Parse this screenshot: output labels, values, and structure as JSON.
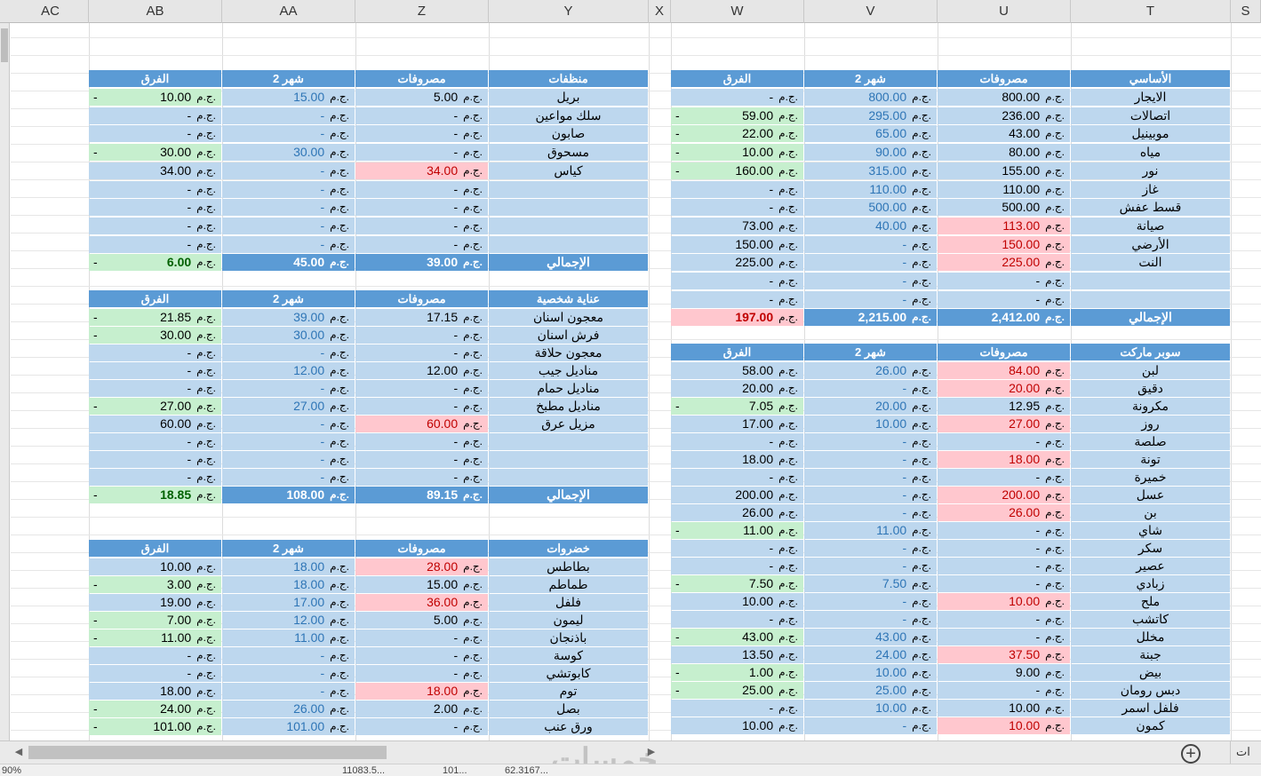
{
  "columns": [
    {
      "label": "AC",
      "x": 14,
      "w": 86
    },
    {
      "label": "AB",
      "x": 100,
      "w": 150
    },
    {
      "label": "AA",
      "x": 250,
      "w": 150
    },
    {
      "label": "Z",
      "x": 400,
      "w": 150
    },
    {
      "label": "Y",
      "x": 550,
      "w": 180
    },
    {
      "label": "X",
      "x": 730,
      "w": 25
    },
    {
      "label": "W",
      "x": 755,
      "w": 150
    },
    {
      "label": "V",
      "x": 905,
      "w": 150
    },
    {
      "label": "U",
      "x": 1055,
      "w": 150
    },
    {
      "label": "T",
      "x": 1205,
      "w": 180
    },
    {
      "label": "S",
      "x": 1385,
      "w": 34
    }
  ],
  "currency": "ج.م.",
  "dash": "-",
  "headers": {
    "diff": "الفرق",
    "month2": "شهر 2",
    "expenses": "مصروفات"
  },
  "total_label": "الإجمالي",
  "tables": {
    "basic": {
      "title": "الأساسي",
      "rows": [
        {
          "name": "الايجار",
          "exp": "800.00",
          "m2": "800.00",
          "diff": "-"
        },
        {
          "name": "اتصالات",
          "exp": "236.00",
          "m2": "295.00",
          "diff": "59.00",
          "flag": "-"
        },
        {
          "name": "موبينيل",
          "exp": "43.00",
          "m2": "65.00",
          "diff": "22.00",
          "flag": "-"
        },
        {
          "name": "مياه",
          "exp": "80.00",
          "m2": "90.00",
          "diff": "10.00",
          "flag": "-"
        },
        {
          "name": "نور",
          "exp": "155.00",
          "m2": "315.00",
          "diff": "160.00",
          "flag": "-"
        },
        {
          "name": "غاز",
          "exp": "110.00",
          "m2": "110.00",
          "diff": "-"
        },
        {
          "name": "قسط عفش",
          "exp": "500.00",
          "m2": "500.00",
          "diff": "-"
        },
        {
          "name": "صيانة",
          "exp": "113.00",
          "m2": "40.00",
          "diff": "73.00"
        },
        {
          "name": "الأرضي",
          "exp": "150.00",
          "m2": "-",
          "diff": "150.00"
        },
        {
          "name": "النت",
          "exp": "225.00",
          "m2": "-",
          "diff": "225.00"
        },
        {
          "name": "",
          "exp": "-",
          "m2": "-",
          "diff": "-"
        },
        {
          "name": "",
          "exp": "-",
          "m2": "-",
          "diff": "-"
        }
      ],
      "total": {
        "exp": "2,412.00",
        "m2": "2,215.00",
        "diff": "197.00"
      }
    },
    "supermarket": {
      "title": "سوبر ماركت",
      "rows": [
        {
          "name": "لبن",
          "exp": "84.00",
          "m2": "26.00",
          "diff": "58.00"
        },
        {
          "name": "دقيق",
          "exp": "20.00",
          "m2": "-",
          "diff": "20.00"
        },
        {
          "name": "مكرونة",
          "exp": "12.95",
          "m2": "20.00",
          "diff": "7.05",
          "flag": "-"
        },
        {
          "name": "روز",
          "exp": "27.00",
          "m2": "10.00",
          "diff": "17.00"
        },
        {
          "name": "صلصة",
          "exp": "-",
          "m2": "-",
          "diff": "-"
        },
        {
          "name": "تونة",
          "exp": "18.00",
          "m2": "-",
          "diff": "18.00"
        },
        {
          "name": "خميرة",
          "exp": "-",
          "m2": "-",
          "diff": "-"
        },
        {
          "name": "عسل",
          "exp": "200.00",
          "m2": "-",
          "diff": "200.00"
        },
        {
          "name": "بن",
          "exp": "26.00",
          "m2": "-",
          "diff": "26.00"
        },
        {
          "name": "شاي",
          "exp": "-",
          "m2": "11.00",
          "diff": "11.00",
          "flag": "-"
        },
        {
          "name": "سكر",
          "exp": "-",
          "m2": "-",
          "diff": "-"
        },
        {
          "name": "عصير",
          "exp": "-",
          "m2": "-",
          "diff": "-"
        },
        {
          "name": "زبادي",
          "exp": "-",
          "m2": "7.50",
          "diff": "7.50",
          "flag": "-"
        },
        {
          "name": "ملح",
          "exp": "10.00",
          "m2": "-",
          "diff": "10.00"
        },
        {
          "name": "كاتشب",
          "exp": "-",
          "m2": "-",
          "diff": "-"
        },
        {
          "name": "مخلل",
          "exp": "-",
          "m2": "43.00",
          "diff": "43.00",
          "flag": "-"
        },
        {
          "name": "جبنة",
          "exp": "37.50",
          "m2": "24.00",
          "diff": "13.50"
        },
        {
          "name": "بيض",
          "exp": "9.00",
          "m2": "10.00",
          "diff": "1.00",
          "flag": "-"
        },
        {
          "name": "دبس رومان",
          "exp": "-",
          "m2": "25.00",
          "diff": "25.00",
          "flag": "-"
        },
        {
          "name": "فلفل اسمر",
          "exp": "10.00",
          "m2": "10.00",
          "diff": "-"
        },
        {
          "name": "كمون",
          "exp": "10.00",
          "m2": "-",
          "diff": "10.00"
        }
      ]
    },
    "cleaning": {
      "title": "منظفات",
      "rows": [
        {
          "name": "بريل",
          "exp": "5.00",
          "m2": "15.00",
          "diff": "10.00",
          "flag": "-"
        },
        {
          "name": "سلك مواعين",
          "exp": "-",
          "m2": "-",
          "diff": "-"
        },
        {
          "name": "صابون",
          "exp": "-",
          "m2": "-",
          "diff": "-"
        },
        {
          "name": "مسحوق",
          "exp": "-",
          "m2": "30.00",
          "diff": "30.00",
          "flag": "-"
        },
        {
          "name": "كياس",
          "exp": "34.00",
          "m2": "-",
          "diff": "34.00"
        },
        {
          "name": "",
          "exp": "-",
          "m2": "-",
          "diff": "-"
        },
        {
          "name": "",
          "exp": "-",
          "m2": "-",
          "diff": "-"
        },
        {
          "name": "",
          "exp": "-",
          "m2": "-",
          "diff": "-"
        },
        {
          "name": "",
          "exp": "-",
          "m2": "-",
          "diff": "-"
        }
      ],
      "total": {
        "exp": "39.00",
        "m2": "45.00",
        "diff": "6.00",
        "flag": "-"
      }
    },
    "personal": {
      "title": "عناية شخصية",
      "rows": [
        {
          "name": "معجون اسنان",
          "exp": "17.15",
          "m2": "39.00",
          "diff": "21.85",
          "flag": "-"
        },
        {
          "name": "فرش اسنان",
          "exp": "-",
          "m2": "30.00",
          "diff": "30.00",
          "flag": "-"
        },
        {
          "name": "معجون حلاقة",
          "exp": "-",
          "m2": "-",
          "diff": "-"
        },
        {
          "name": "مناديل جيب",
          "exp": "12.00",
          "m2": "12.00",
          "diff": "-"
        },
        {
          "name": "مناديل حمام",
          "exp": "-",
          "m2": "-",
          "diff": "-"
        },
        {
          "name": "مناديل مطبخ",
          "exp": "-",
          "m2": "27.00",
          "diff": "27.00",
          "flag": "-"
        },
        {
          "name": "مزيل عرق",
          "exp": "60.00",
          "m2": "-",
          "diff": "60.00"
        },
        {
          "name": "",
          "exp": "-",
          "m2": "-",
          "diff": "-"
        },
        {
          "name": "",
          "exp": "-",
          "m2": "-",
          "diff": "-"
        },
        {
          "name": "",
          "exp": "-",
          "m2": "-",
          "diff": "-"
        }
      ],
      "total": {
        "exp": "89.15",
        "m2": "108.00",
        "diff": "18.85",
        "flag": "-"
      }
    },
    "vegetables": {
      "title": "خضروات",
      "rows": [
        {
          "name": "بطاطس",
          "exp": "28.00",
          "m2": "18.00",
          "diff": "10.00"
        },
        {
          "name": "طماطم",
          "exp": "15.00",
          "m2": "18.00",
          "diff": "3.00",
          "flag": "-"
        },
        {
          "name": "فلفل",
          "exp": "36.00",
          "m2": "17.00",
          "diff": "19.00"
        },
        {
          "name": "ليمون",
          "exp": "5.00",
          "m2": "12.00",
          "diff": "7.00",
          "flag": "-"
        },
        {
          "name": "باذنجان",
          "exp": "-",
          "m2": "11.00",
          "diff": "11.00",
          "flag": "-"
        },
        {
          "name": "كوسة",
          "exp": "-",
          "m2": "-",
          "diff": "-"
        },
        {
          "name": "كابوتشي",
          "exp": "-",
          "m2": "-",
          "diff": "-"
        },
        {
          "name": "توم",
          "exp": "18.00",
          "m2": "-",
          "diff": "18.00"
        },
        {
          "name": "بصل",
          "exp": "2.00",
          "m2": "26.00",
          "diff": "24.00",
          "flag": "-"
        },
        {
          "name": "ورق عنب",
          "exp": "-",
          "m2": "101.00",
          "diff": "101.00",
          "flag": "-"
        }
      ]
    }
  },
  "bottom": {
    "add_sheet": "+",
    "sheet_tab": "ات",
    "watermark": "خمسات",
    "left_arrow": "◀",
    "right_arrow": "▶"
  },
  "status": {
    "zoom": "90%",
    "count": "11083.5...",
    "num2": "101...",
    "avg": "62.3167..."
  }
}
